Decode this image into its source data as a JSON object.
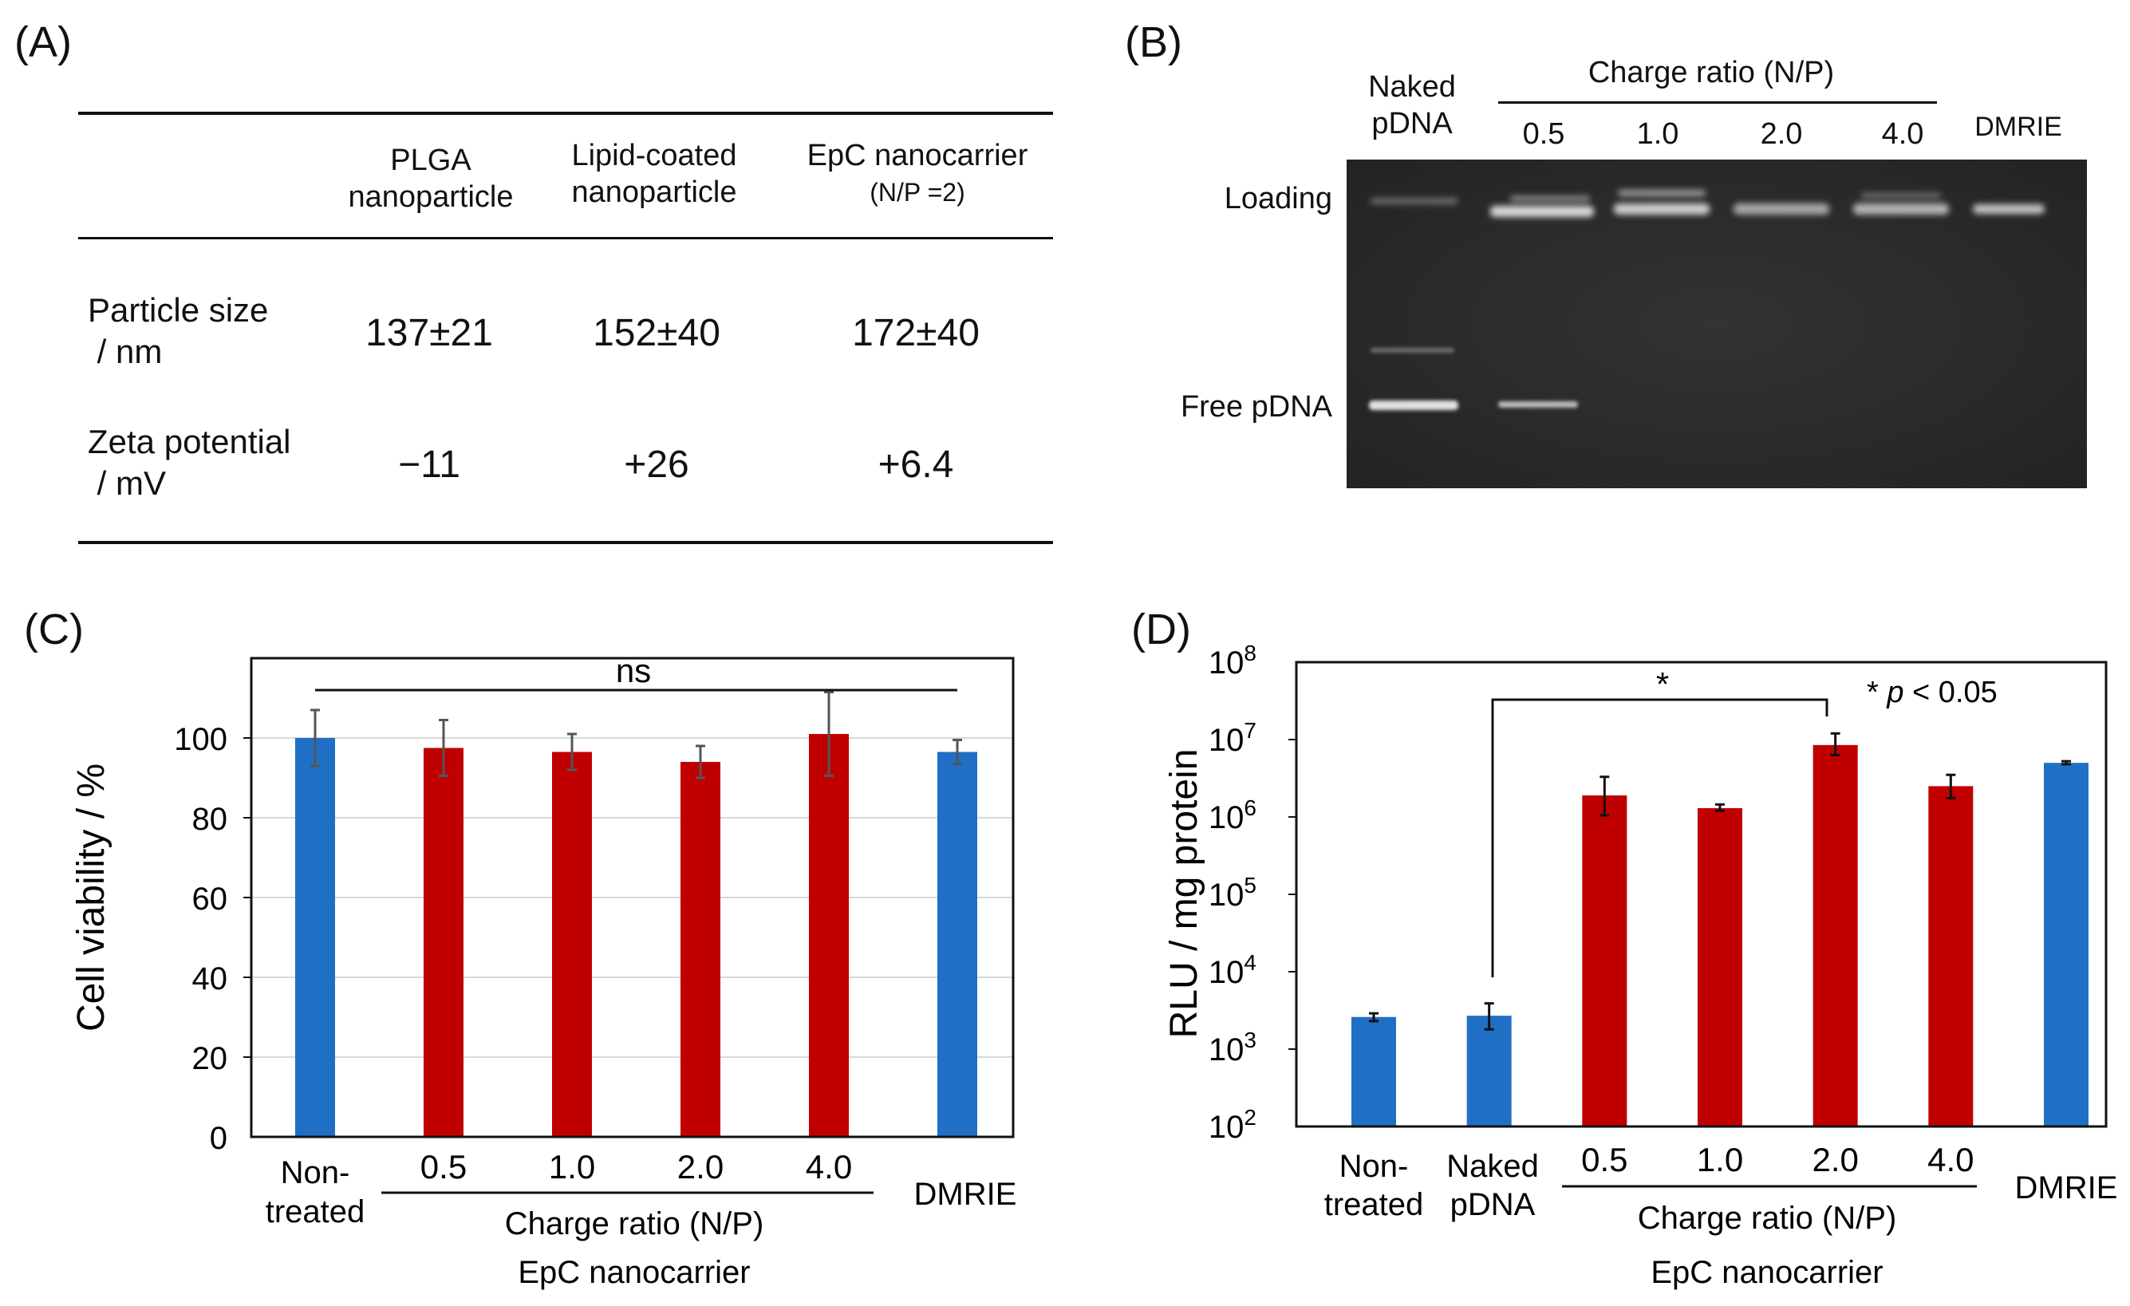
{
  "panel_labels": {
    "a": "(A)",
    "b": "(B)",
    "c": "(C)",
    "d": "(D)"
  },
  "table": {
    "headers": [
      {
        "line1": "PLGA",
        "line2": "nanoparticle",
        "line3": ""
      },
      {
        "line1": "Lipid-coated",
        "line2": "nanoparticle",
        "line3": ""
      },
      {
        "line1": "EpC nanocarrier",
        "line2": "",
        "line3": "(N/P =2)"
      }
    ],
    "rows": [
      {
        "label1": "Particle size",
        "label2": " / nm",
        "values": [
          "137±21",
          "152±40",
          "172±40"
        ]
      },
      {
        "label1": "Zeta potential",
        "label2": " / mV",
        "values": [
          "−11",
          "+26",
          "+6.4"
        ]
      }
    ]
  },
  "gel": {
    "naked_1": "Naked",
    "naked_2": "pDNA",
    "charge_title": "Charge ratio (N/P)",
    "ratios": [
      "0.5",
      "1.0",
      "2.0",
      "4.0"
    ],
    "dmrie": "DMRIE",
    "loading_label": "Loading",
    "free_label": "Free pDNA",
    "colors": {
      "gel": "#2b2b2b",
      "band": "#e8e8e8"
    }
  },
  "chart_data": [
    {
      "type": "bar",
      "panel": "C",
      "title": "",
      "ylabel": "Cell viability / %",
      "ylim": [
        0,
        120
      ],
      "yticks": [
        0,
        20,
        40,
        60,
        80,
        100
      ],
      "ytick_labels": [
        "0",
        "20",
        "40",
        "60",
        "80",
        "100"
      ],
      "categories": [
        "Non-treated",
        "0.5",
        "1.0",
        "2.0",
        "4.0",
        "DMRIE"
      ],
      "values": [
        100,
        97.5,
        96.5,
        94,
        101,
        96.5
      ],
      "errors": [
        7,
        7,
        4.5,
        4,
        10.5,
        3
      ],
      "colors": [
        "#1f6fc5",
        "#c00000",
        "#c00000",
        "#c00000",
        "#c00000",
        "#1f6fc5"
      ],
      "grid": true,
      "annotation": "ns",
      "xlabels": {
        "nontreated_1": "Non-",
        "nontreated_2": "treated",
        "charge": "Charge ratio (N/P)",
        "carrier": "EpC nanocarrier",
        "dmrie": "DMRIE"
      }
    },
    {
      "type": "bar",
      "panel": "D",
      "title": "",
      "ylabel": "RLU / mg protein",
      "yscale": "log",
      "ylim": [
        100,
        100000000
      ],
      "ytick_bases": [
        "10",
        "10",
        "10",
        "10",
        "10",
        "10",
        "10"
      ],
      "ytick_exps": [
        "2",
        "3",
        "4",
        "5",
        "6",
        "7",
        "8"
      ],
      "categories": [
        "Non-treated",
        "Naked pDNA",
        "0.5",
        "1.0",
        "2.0",
        "4.0",
        "DMRIE"
      ],
      "values": [
        2600,
        2700,
        1900000,
        1300000,
        8500000,
        2500000,
        5000000
      ],
      "err_low": [
        2300,
        1800,
        1050000,
        1200000,
        6300000,
        1750000,
        4800000
      ],
      "err_high": [
        2900,
        3900,
        3300000,
        1450000,
        12000000,
        3500000,
        5250000
      ],
      "colors": [
        "#1f6fc5",
        "#1f6fc5",
        "#c00000",
        "#c00000",
        "#c00000",
        "#c00000",
        "#1f6fc5"
      ],
      "grid": false,
      "sig_star": "*",
      "p_star": "* ",
      "p_italic": "p",
      "p_rest": " < 0.05",
      "xlabels": {
        "nontreated_1": "Non-",
        "nontreated_2": "treated",
        "naked_1": "Naked",
        "naked_2": "pDNA",
        "charge": "Charge ratio (N/P)",
        "carrier": "EpC nanocarrier",
        "dmrie": "DMRIE"
      }
    }
  ]
}
